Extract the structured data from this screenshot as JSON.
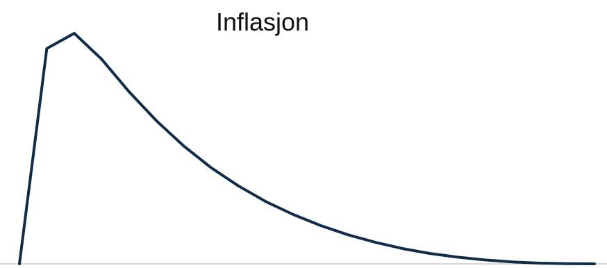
{
  "chart_data": {
    "type": "line",
    "title": "Inflasjon",
    "xlabel": "",
    "ylabel": "",
    "x": [
      0,
      1,
      2,
      3,
      4,
      5,
      6,
      7,
      8,
      9,
      10,
      11,
      12,
      13,
      14,
      15,
      16,
      17,
      18,
      19,
      20,
      21
    ],
    "xlim": [
      0,
      21
    ],
    "ylim": [
      0,
      100
    ],
    "grid": false,
    "legend": "none",
    "series": [
      {
        "values": [
          0,
          93.4,
          100,
          88.8,
          74.7,
          62.1,
          51.1,
          41.7,
          33.8,
          27.0,
          21.4,
          16.6,
          12.6,
          9.3,
          6.6,
          4.5,
          2.9,
          1.7,
          0.8,
          0.3,
          0.1,
          0
        ],
        "color": "#0f2c48"
      }
    ],
    "axis_color": "#c8c8c8"
  }
}
